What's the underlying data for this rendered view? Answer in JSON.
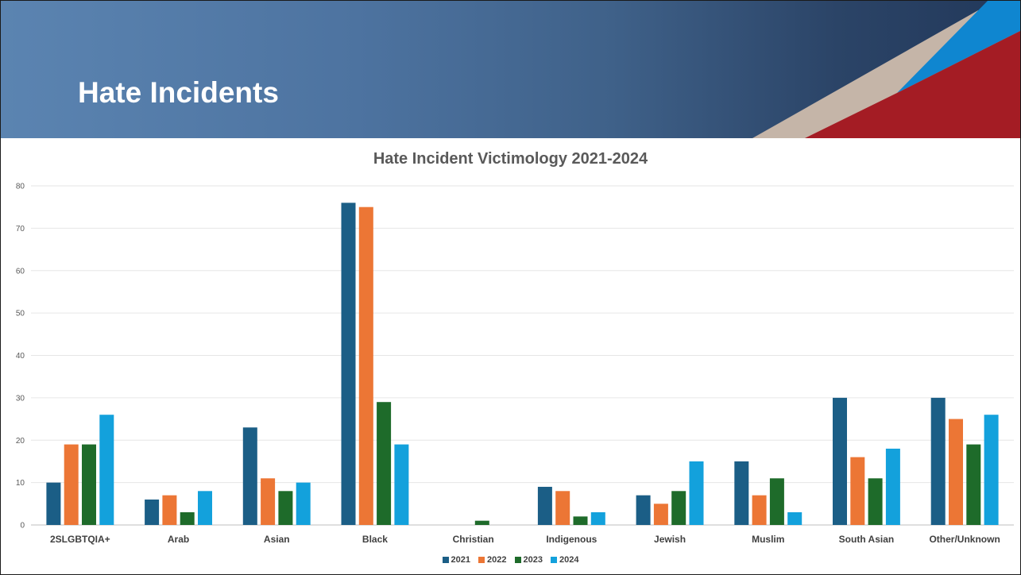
{
  "slide": {
    "title": "Hate Incidents"
  },
  "chart_data": {
    "type": "bar",
    "title": "Hate Incident Victimology 2021-2024",
    "xlabel": "",
    "ylabel": "",
    "ylim": [
      0,
      80
    ],
    "yticks": [
      "0",
      "10",
      "20",
      "30",
      "40",
      "50",
      "60",
      "70",
      "80"
    ],
    "grid": true,
    "legend_position": "bottom",
    "categories": [
      "2SLGBTQIA+",
      "Arab",
      "Asian",
      "Black",
      "Christian",
      "Indigenous",
      "Jewish",
      "Muslim",
      "South Asian",
      "Other/Unknown"
    ],
    "series": [
      {
        "name": "2021",
        "color": "#1b5e86",
        "values": [
          10,
          6,
          23,
          76,
          0,
          9,
          7,
          15,
          30,
          30
        ]
      },
      {
        "name": "2022",
        "color": "#ec7635",
        "values": [
          19,
          7,
          11,
          75,
          0,
          8,
          5,
          7,
          16,
          25
        ]
      },
      {
        "name": "2023",
        "color": "#1e6b2a",
        "values": [
          19,
          3,
          8,
          29,
          1,
          2,
          8,
          11,
          11,
          19
        ]
      },
      {
        "name": "2024",
        "color": "#13a1dc",
        "values": [
          26,
          8,
          10,
          19,
          0,
          3,
          15,
          3,
          18,
          26
        ]
      }
    ]
  }
}
